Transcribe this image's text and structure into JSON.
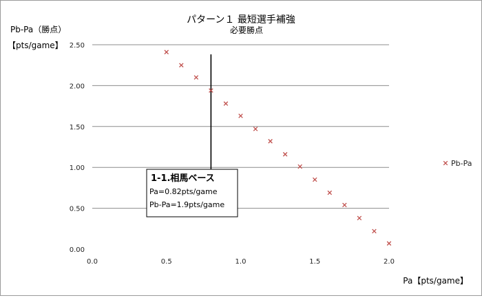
{
  "chart_data": {
    "type": "scatter",
    "title": "パターン１ 最短選手補強",
    "subtitle": "必要勝点",
    "ylabel_line1": "Pb-Pa（勝点）",
    "ylabel_line2": "【pts/game】",
    "xlabel": "Pa【pts/game】",
    "xlim": [
      0,
      2.0
    ],
    "ylim": [
      0,
      2.5
    ],
    "x_ticks": [
      0.0,
      0.5,
      1.0,
      1.5,
      2.0
    ],
    "x_tick_labels": [
      "0.0",
      "0.5",
      "1.0",
      "1.5",
      "2.0"
    ],
    "y_ticks": [
      0.0,
      0.5,
      1.0,
      1.5,
      2.0,
      2.5
    ],
    "y_tick_labels": [
      "0.00",
      "0.50",
      "1.00",
      "1.50",
      "2.00",
      "2.50"
    ],
    "grid": "horizontal",
    "legend_position": "right",
    "series": [
      {
        "name": "Pb-Pa",
        "marker": "x",
        "color": "#c0504d",
        "x": [
          0.5,
          0.6,
          0.7,
          0.8,
          0.9,
          1.0,
          1.1,
          1.2,
          1.3,
          1.4,
          1.5,
          1.6,
          1.7,
          1.8,
          1.9,
          2.0
        ],
        "y": [
          2.41,
          2.25,
          2.1,
          1.94,
          1.78,
          1.63,
          1.47,
          1.32,
          1.16,
          1.01,
          0.85,
          0.69,
          0.54,
          0.38,
          0.22,
          0.07
        ]
      }
    ],
    "annotation": {
      "title": "1-1.相馬ベース",
      "lines": [
        "Pa=0.82pts/game",
        "Pb-Pa=1.9pts/game"
      ],
      "x": 0.8
    }
  }
}
